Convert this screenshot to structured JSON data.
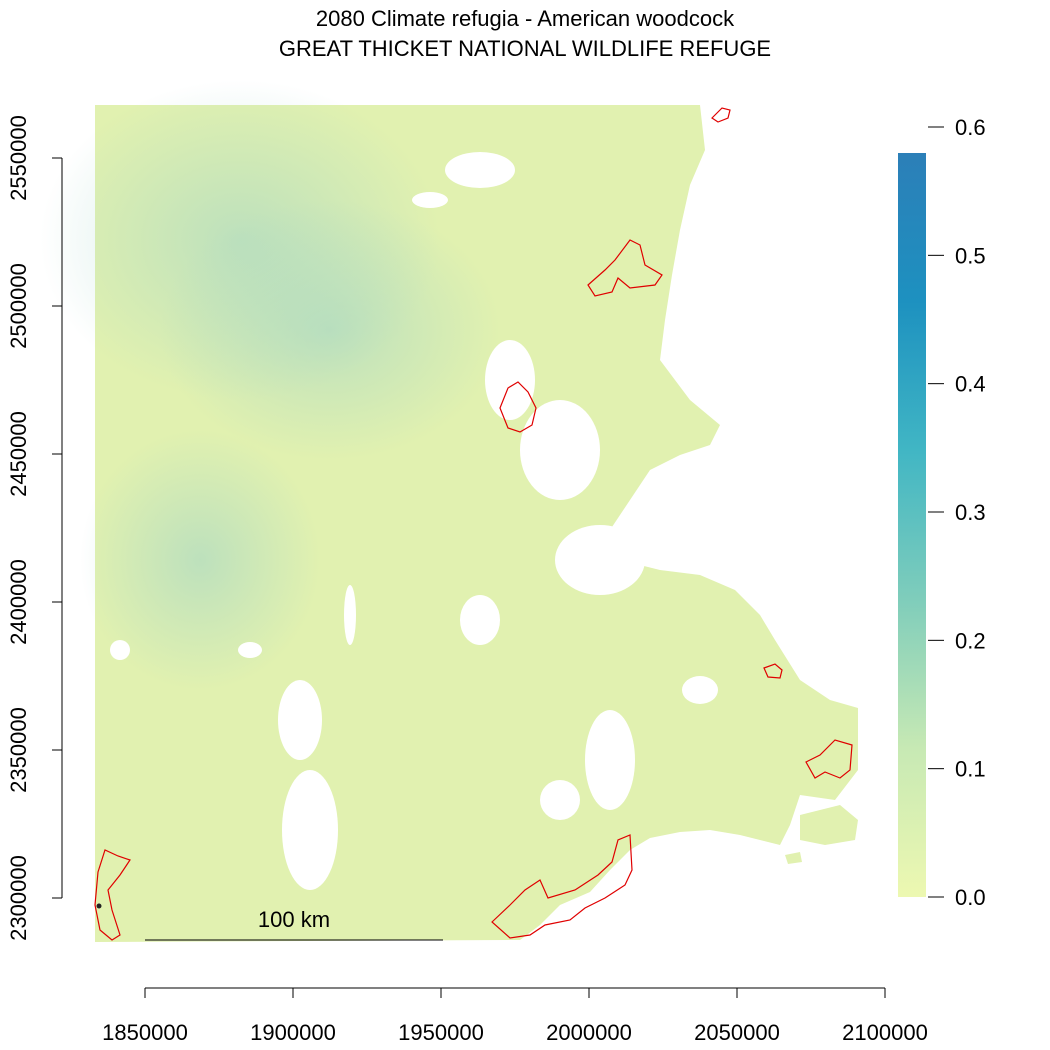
{
  "title": {
    "line1": "2080 Climate refugia - American woodcock",
    "line2": "GREAT THICKET NATIONAL WILDLIFE REFUGE"
  },
  "x_axis": {
    "min": 1850000,
    "max": 2100000,
    "ticks": [
      "1850000",
      "1900000",
      "1950000",
      "2000000",
      "2050000",
      "2100000"
    ]
  },
  "y_axis": {
    "min": 2300000,
    "max": 2550000,
    "ticks": [
      "2300000",
      "2350000",
      "2400000",
      "2450000",
      "2500000",
      "2550000"
    ]
  },
  "legend": {
    "min": 0.0,
    "max": 0.6,
    "ticks": [
      "0.0",
      "0.1",
      "0.2",
      "0.3",
      "0.4",
      "0.5",
      "0.6"
    ],
    "colors": [
      "#edf8b1",
      "#c7e9b4",
      "#7fcdbb",
      "#41b6c4",
      "#1d91c0",
      "#2c7fb8"
    ]
  },
  "scale_bar": {
    "label": "100 km"
  },
  "colors": {
    "raster_base": "#e3f2b0",
    "raster_mid": "#d3ecb8",
    "refuge_outline": "#e00000"
  }
}
